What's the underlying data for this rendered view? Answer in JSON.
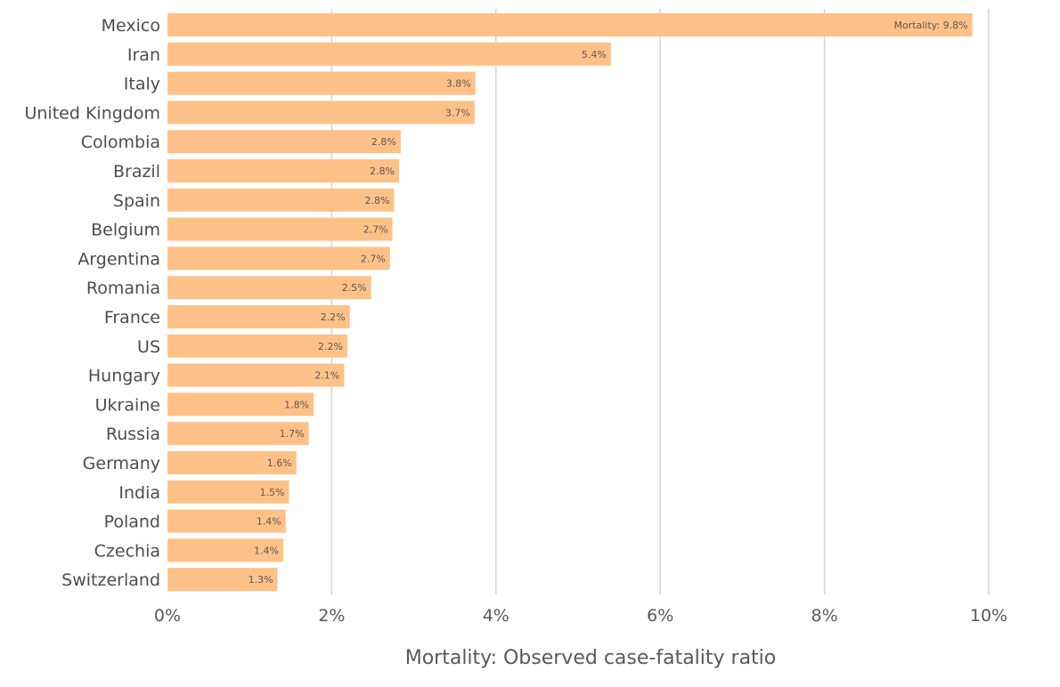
{
  "chart_data": {
    "type": "bar",
    "orientation": "horizontal",
    "categories": [
      "Mexico",
      "Iran",
      "Italy",
      "United Kingdom",
      "Colombia",
      "Brazil",
      "Spain",
      "Belgium",
      "Argentina",
      "Romania",
      "France",
      "US",
      "Hungary",
      "Ukraine",
      "Russia",
      "Germany",
      "India",
      "Poland",
      "Czechia",
      "Switzerland"
    ],
    "values": [
      9.8,
      5.4,
      3.75,
      3.74,
      2.84,
      2.82,
      2.76,
      2.74,
      2.71,
      2.48,
      2.22,
      2.19,
      2.15,
      1.78,
      1.72,
      1.57,
      1.48,
      1.44,
      1.41,
      1.34
    ],
    "data_labels": [
      "Mortality: 9.8%",
      "5.4%",
      "3.8%",
      "3.7%",
      "2.8%",
      "2.8%",
      "2.8%",
      "2.7%",
      "2.7%",
      "2.5%",
      "2.2%",
      "2.2%",
      "2.1%",
      "1.8%",
      "1.7%",
      "1.6%",
      "1.5%",
      "1.4%",
      "1.4%",
      "1.3%"
    ],
    "title": "",
    "xlabel": "Mortality: Observed case-fatality ratio",
    "ylabel": "",
    "xlim": [
      0,
      10
    ],
    "xticks": [
      0,
      2,
      4,
      6,
      8,
      10
    ],
    "xtick_labels": [
      "0%",
      "2%",
      "4%",
      "6%",
      "8%",
      "10%"
    ],
    "grid": "vertical",
    "legend": "none",
    "bar_color": "#ffc187"
  }
}
